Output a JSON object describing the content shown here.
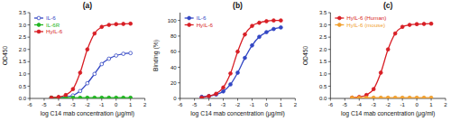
{
  "chart_data": [
    {
      "type": "line",
      "title": "(a)",
      "x_label": "log C14 mab concentration (μg/ml)",
      "y_label": "OD450",
      "x": [
        -4.5,
        -4,
        -3.5,
        -3,
        -2.5,
        -2,
        -1.5,
        -1,
        -0.5,
        0,
        0.5,
        1
      ],
      "series": [
        {
          "name": "IL-6",
          "color": "#3347c4",
          "marker": "open_circle",
          "values": [
            0.03,
            0.04,
            0.06,
            0.12,
            0.3,
            0.62,
            1.0,
            1.4,
            1.62,
            1.75,
            1.82,
            1.85
          ]
        },
        {
          "name": "IL-6R",
          "color": "#22b522",
          "marker": "circle",
          "values": [
            0.03,
            0.03,
            0.03,
            0.03,
            0.03,
            0.03,
            0.03,
            0.03,
            0.03,
            0.03,
            0.03,
            0.03
          ]
        },
        {
          "name": "HyIL-6",
          "color": "#d81f26",
          "marker": "circle",
          "values": [
            0.03,
            0.06,
            0.14,
            0.38,
            1.05,
            2.0,
            2.65,
            2.92,
            3.0,
            3.03,
            3.04,
            3.05
          ]
        }
      ],
      "xlim": [
        -6,
        2
      ],
      "xticks": [
        -6,
        -5,
        -4,
        -3,
        -2,
        -1,
        0,
        1,
        2
      ],
      "ylim": [
        0,
        3.5
      ],
      "yticks": [
        {
          "value": 0,
          "label": "0.0"
        },
        {
          "value": 0.5,
          "label": "0.5"
        },
        {
          "value": 1,
          "label": "1.0"
        },
        {
          "value": 1.5,
          "label": "1.5"
        },
        {
          "value": 2,
          "label": "2.0"
        },
        {
          "value": 2.5,
          "label": "2.5"
        },
        {
          "value": 3,
          "label": "3.0"
        },
        {
          "value": 3.5,
          "label": "3.5"
        }
      ],
      "legend": "upper left"
    },
    {
      "type": "line",
      "title": "(b)",
      "x_label": "log C14 mab concentration (μg/ml)",
      "y_label": "Binding (%)",
      "x": [
        -4.5,
        -4,
        -3.5,
        -3,
        -2.5,
        -2,
        -1.5,
        -1,
        -0.5,
        0,
        0.5,
        1
      ],
      "series": [
        {
          "name": "IL-6",
          "color": "#3347c4",
          "marker": "circle",
          "values": [
            2,
            3,
            5,
            9,
            18,
            33,
            52,
            68,
            79,
            85,
            89,
            91
          ]
        },
        {
          "name": "HyIL-6",
          "color": "#d81f26",
          "marker": "circle",
          "values": [
            1,
            3,
            6,
            14,
            32,
            60,
            82,
            93,
            97,
            99,
            100,
            100
          ]
        }
      ],
      "xlim": [
        -6,
        2
      ],
      "xticks": [
        -6,
        -5,
        -4,
        -3,
        -2,
        -1,
        0,
        1,
        2
      ],
      "ylim": [
        0,
        110
      ],
      "yticks": [
        0,
        20,
        40,
        60,
        80,
        100
      ],
      "legend": "upper left"
    },
    {
      "type": "line",
      "title": "(c)",
      "x_label": "log C14 mab concentration (μg/ml)",
      "y_label": "OD450",
      "x": [
        -4.5,
        -4,
        -3.5,
        -3,
        -2.5,
        -2,
        -1.5,
        -1,
        -0.5,
        0,
        0.5,
        1
      ],
      "series": [
        {
          "name": "HyIL-6 (Human)",
          "color": "#d81f26",
          "marker": "circle",
          "values": [
            0.03,
            0.06,
            0.14,
            0.38,
            1.05,
            2.0,
            2.65,
            2.92,
            3.0,
            3.03,
            3.04,
            3.05
          ]
        },
        {
          "name": "HyIL-6 (mouse)",
          "color": "#f0a030",
          "marker": "circle",
          "values": [
            0.03,
            0.03,
            0.03,
            0.03,
            0.03,
            0.03,
            0.03,
            0.03,
            0.03,
            0.03,
            0.03,
            0.03
          ]
        }
      ],
      "xlim": [
        -6,
        2
      ],
      "xticks": [
        -6,
        -5,
        -4,
        -3,
        -2,
        -1,
        0,
        1,
        2
      ],
      "ylim": [
        0,
        3.5
      ],
      "yticks": [
        {
          "value": 0,
          "label": "0.0"
        },
        {
          "value": 0.5,
          "label": "0.5"
        },
        {
          "value": 1,
          "label": "1.0"
        },
        {
          "value": 1.5,
          "label": "1.5"
        },
        {
          "value": 2,
          "label": "2.0"
        },
        {
          "value": 2.5,
          "label": "2.5"
        },
        {
          "value": 3,
          "label": "3.0"
        },
        {
          "value": 3.5,
          "label": "3.5"
        }
      ],
      "legend": "upper left"
    }
  ]
}
